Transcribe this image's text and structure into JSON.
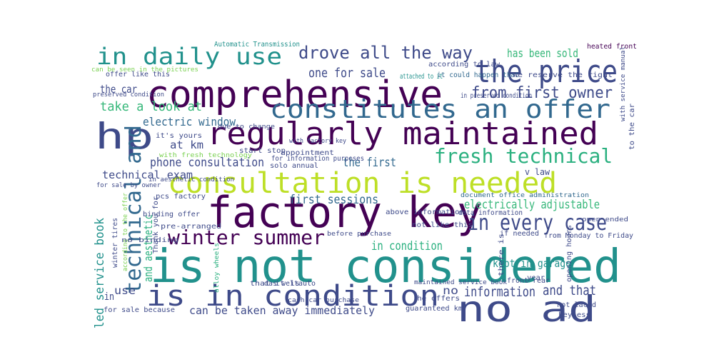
{
  "words": [
    "is not considered",
    "factory key",
    "comprehensive",
    "regularly maintained",
    "consultation is needed",
    "the price",
    "no ad",
    "is in condition",
    "constitutes an offer",
    "hp",
    "in daily use",
    "drove all the way",
    "fresh technical",
    "technical and",
    "winter summer",
    "in every case",
    "from first owner",
    "has been sold",
    "take a look at",
    "electric window",
    "the car",
    "one for sale",
    "at km",
    "phone consultation",
    "technical exam",
    "the first",
    "first sessions",
    "electrically adjustable",
    "in condition",
    "kept in garage",
    "can be taken away immediately",
    "information",
    "and that",
    "no",
    "led service book",
    "and aesthetic",
    "use",
    "in",
    "Automatic Transmission",
    "heated front",
    "according to law",
    "it could happen that",
    "we reserve the right",
    "in preserved condition",
    "offer like this",
    "can be seen in the pictures",
    "attached to it",
    "due to change",
    "it's yours",
    "with factory key",
    "start stop",
    "for information purposes",
    "solo annual",
    "appointment",
    "binding offer",
    "pcs factory",
    "pre-arranged",
    "Thank you for",
    "above information",
    "data information",
    "document office administration",
    "not like this",
    "there is",
    "opening hours",
    "from Monday to Friday",
    "maintained service book",
    "das weltauto",
    "he offers",
    "guaranteed km",
    "not laced",
    "keyless",
    "front rear",
    "year",
    "alloy wheels",
    "winter tires",
    "for sale because",
    "according to the offer",
    "open ended",
    "if needed",
    "with service manual",
    "to the car",
    "that it is",
    "before purchase",
    "cash car purchase",
    "v law",
    "preserved condition",
    "with fresh technology",
    "in aesthetic condition",
    "for sale by owner",
    "no binding"
  ]
}
